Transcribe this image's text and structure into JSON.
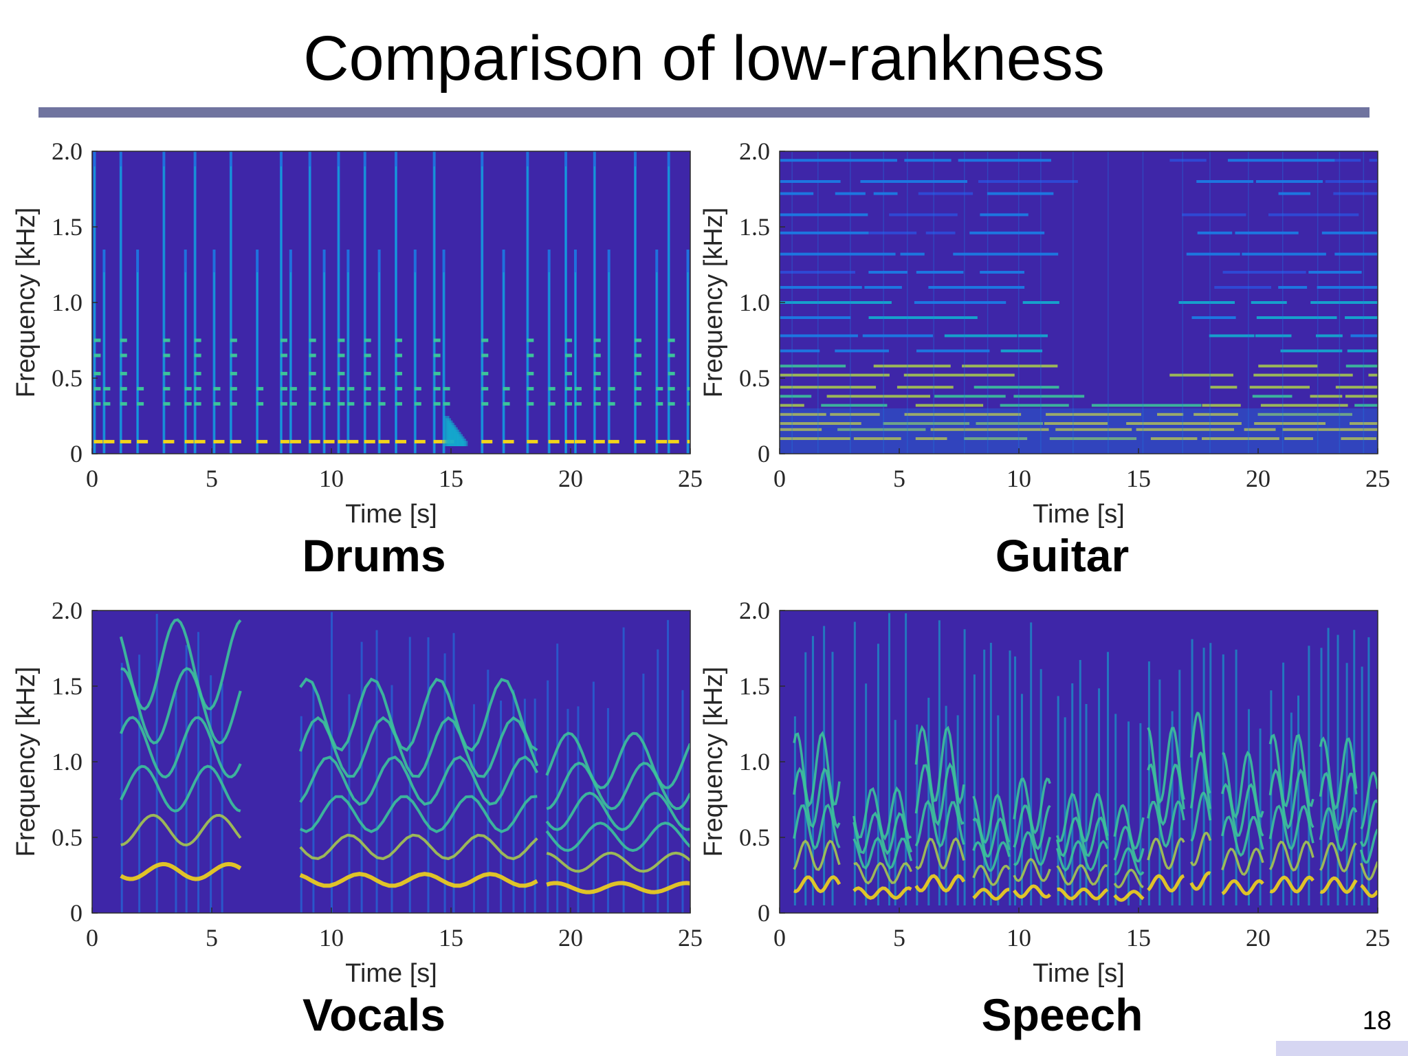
{
  "slide": {
    "title": "Comparison of low-rankness",
    "page_number": "18"
  },
  "colors": {
    "title_rule": "#70749f",
    "corner_bar": "#d6d6f2",
    "colormap": [
      "#3e26a8",
      "#2e4cd8",
      "#1a7fe6",
      "#12aecf",
      "#3cc39a",
      "#a6c84f",
      "#f2d41a"
    ]
  },
  "chart_data": [
    {
      "type": "heatmap",
      "caption": "Drums",
      "xlabel": "Time [s]",
      "ylabel": "Frequency [kHz]",
      "xlim": [
        0,
        25
      ],
      "ylim": [
        0,
        2.0
      ],
      "xticks": [
        0,
        5,
        10,
        15,
        20,
        25
      ],
      "xtick_labels": [
        "0",
        "5",
        "10",
        "15",
        "20",
        "25"
      ],
      "yticks": [
        0,
        0.5,
        1.0,
        1.5,
        2.0
      ],
      "ytick_labels": [
        "0",
        "0.5",
        "1.0",
        "1.5",
        "2.0"
      ],
      "description": "periodic vertical onset strikes with harmonic spots",
      "onsets_s": [
        0.1,
        0.5,
        1.2,
        1.9,
        3.0,
        3.9,
        4.3,
        5.1,
        5.8,
        6.9,
        7.9,
        8.3,
        9.1,
        9.7,
        10.3,
        10.7,
        11.4,
        12.0,
        12.7,
        13.5,
        14.3,
        14.7,
        16.3,
        17.2,
        18.2,
        19.1,
        19.8,
        20.2,
        21.0,
        21.6,
        22.7,
        23.6,
        24.1,
        24.9
      ],
      "harmonics_khz": [
        0.08,
        0.33,
        0.43,
        0.53,
        0.65,
        0.75
      ],
      "silent_s": [
        [
          15.1,
          16.0
        ]
      ]
    },
    {
      "type": "heatmap",
      "caption": "Guitar",
      "xlabel": "Time [s]",
      "ylabel": "Frequency [kHz]",
      "xlim": [
        0,
        25
      ],
      "ylim": [
        0,
        2.0
      ],
      "xticks": [
        0,
        5,
        10,
        15,
        20,
        25
      ],
      "xtick_labels": [
        "0",
        "5",
        "10",
        "15",
        "20",
        "25"
      ],
      "yticks": [
        0,
        0.5,
        1.0,
        1.5,
        2.0
      ],
      "ytick_labels": [
        "0",
        "0.5",
        "1.0",
        "1.5",
        "2.0"
      ],
      "description": "sustained horizontal harmonic lines",
      "harmonic_lines_khz": [
        0.1,
        0.16,
        0.2,
        0.26,
        0.32,
        0.38,
        0.44,
        0.52,
        0.58,
        0.68,
        0.78,
        0.9,
        1.0,
        1.1,
        1.2,
        1.32,
        1.46,
        1.58,
        1.72,
        1.8,
        1.94
      ]
    },
    {
      "type": "heatmap",
      "caption": "Vocals",
      "xlabel": "Time [s]",
      "ylabel": "Frequency [kHz]",
      "xlim": [
        0,
        25
      ],
      "ylim": [
        0,
        2.0
      ],
      "xticks": [
        0,
        5,
        10,
        15,
        20,
        25
      ],
      "xtick_labels": [
        "0",
        "5",
        "10",
        "15",
        "20",
        "25"
      ],
      "yticks": [
        0,
        0.5,
        1.0,
        1.5,
        2.0
      ],
      "ytick_labels": [
        "0",
        "0.5",
        "1.0",
        "1.5",
        "2.0"
      ],
      "description": "voiced segments with gliding harmonics",
      "segments_s": [
        [
          1.2,
          6.2
        ],
        [
          8.7,
          18.6
        ],
        [
          19.0,
          25.0
        ]
      ],
      "gap_s": [
        6.3,
        8.6
      ],
      "fundamental_khz": [
        0.16,
        0.28
      ]
    },
    {
      "type": "heatmap",
      "caption": "Speech",
      "xlabel": "Time [s]",
      "ylabel": "Frequency [kHz]",
      "xlim": [
        0,
        25
      ],
      "ylim": [
        0,
        2.0
      ],
      "xticks": [
        0,
        5,
        10,
        15,
        20,
        25
      ],
      "xtick_labels": [
        "0",
        "5",
        "10",
        "15",
        "20",
        "25"
      ],
      "yticks": [
        0,
        0.5,
        1.0,
        1.5,
        2.0
      ],
      "ytick_labels": [
        "0",
        "0.5",
        "1.0",
        "1.5",
        "2.0"
      ],
      "description": "short syllable bursts with rapidly changing harmonics",
      "segments_s": [
        [
          0.6,
          2.5
        ],
        [
          3.1,
          5.5
        ],
        [
          5.7,
          7.7
        ],
        [
          8.1,
          9.6
        ],
        [
          9.8,
          11.3
        ],
        [
          11.6,
          13.7
        ],
        [
          14.0,
          15.2
        ],
        [
          15.4,
          16.9
        ],
        [
          17.2,
          18.0
        ],
        [
          18.5,
          20.2
        ],
        [
          20.5,
          22.3
        ],
        [
          22.6,
          24.1
        ],
        [
          24.3,
          25.0
        ]
      ],
      "fundamental_khz": [
        0.1,
        0.22
      ]
    }
  ]
}
